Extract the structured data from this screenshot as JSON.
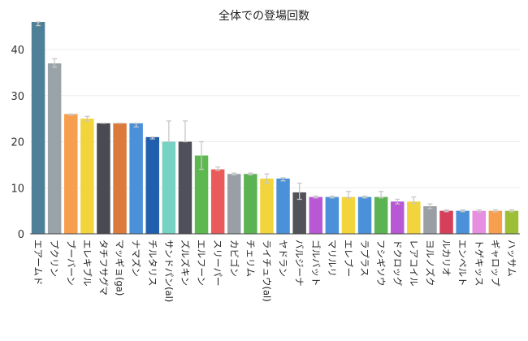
{
  "chart_data": {
    "type": "bar",
    "title": "全体での登場回数",
    "xlabel": "",
    "ylabel": "",
    "ylim": [
      0,
      46
    ],
    "yticks": [
      0,
      10,
      20,
      30,
      40
    ],
    "grid": true,
    "categories": [
      "エアームド",
      "プクリン",
      "ブーバーン",
      "エレキブル",
      "タチフサグマ",
      "マッギョ(ga)",
      "ナマズン",
      "チルタリス",
      "サンドパン(al)",
      "ズルズキン",
      "エルフーン",
      "スリーパー",
      "カビゴン",
      "チェリム",
      "ライチュウ(al)",
      "ヤドラン",
      "バルジーナ",
      "ゴルバット",
      "マリルリ",
      "エレブー",
      "ラプラス",
      "フシギソウ",
      "ドクロッグ",
      "レアコイル",
      "ヨルノズク",
      "ルカリオ",
      "エンペルト",
      "トゲキッス",
      "ギャロップ",
      "ハッサム"
    ],
    "values": [
      46,
      37,
      26,
      25,
      24,
      24,
      24,
      21,
      20,
      20,
      17,
      14,
      13,
      13,
      12,
      12,
      9,
      8,
      8,
      8,
      8,
      8,
      7,
      7,
      6,
      5,
      5,
      5,
      5,
      5
    ],
    "error_upper": [
      46,
      38,
      26,
      25.5,
      24,
      24,
      24,
      21,
      24.5,
      24.5,
      20,
      14.5,
      13.2,
      13.2,
      13,
      12.2,
      11,
      8.2,
      8.2,
      9.2,
      8.2,
      9.2,
      7.5,
      8,
      6.5,
      5.2,
      5.2,
      5.2,
      5.2,
      5.2
    ],
    "error_lower": [
      45.2,
      36.2,
      25.8,
      24.5,
      24,
      24,
      23.2,
      20.6,
      20,
      20,
      14,
      13.8,
      12.8,
      12.8,
      11,
      11.5,
      7.5,
      7.8,
      7.8,
      7.8,
      7.8,
      7.8,
      6.5,
      6.6,
      5.5,
      4.8,
      4.8,
      4.8,
      4.8,
      4.8
    ],
    "colors": [
      "#4e8098",
      "#9aa3a8",
      "#f79f4f",
      "#f2d43d",
      "#4a4a52",
      "#db7a3b",
      "#4b91d9",
      "#1f5fae",
      "#76d2c2",
      "#50505a",
      "#5db850",
      "#ea5a5a",
      "#9a9fa5",
      "#5cb352",
      "#f2d43d",
      "#4b91d9",
      "#52525a",
      "#b858d4",
      "#4b91d9",
      "#f2d43d",
      "#4b91d9",
      "#5cb352",
      "#b858d4",
      "#f2d43d",
      "#9a9fa5",
      "#d63f5a",
      "#4b91d9",
      "#e68ee0",
      "#f79f4f",
      "#9dbf35"
    ]
  }
}
